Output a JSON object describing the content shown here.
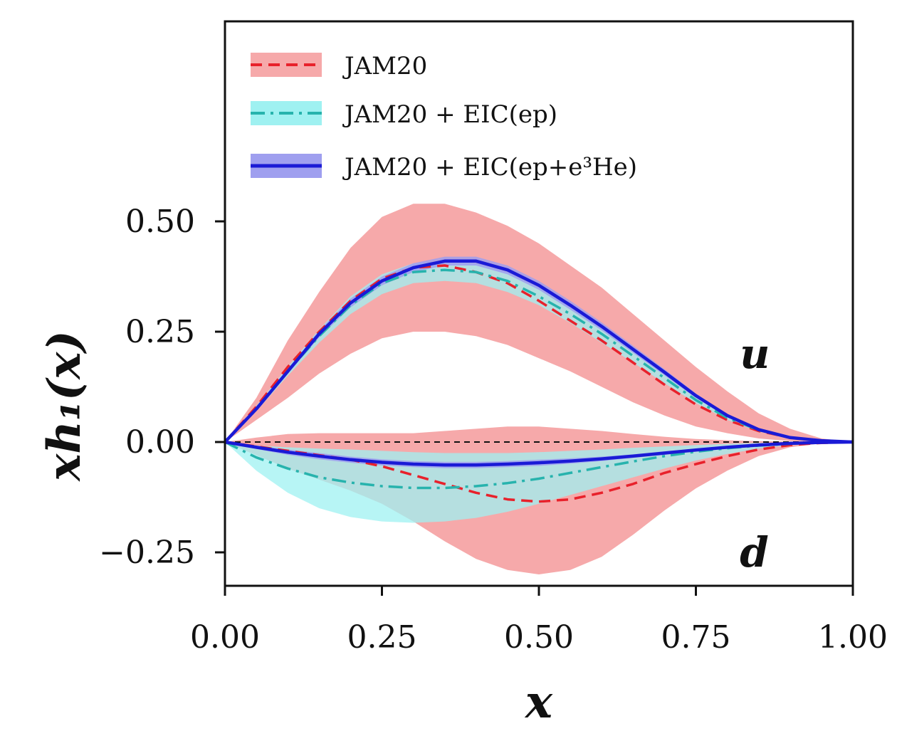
{
  "chart_data": {
    "type": "line",
    "xlabel": "x",
    "ylabel": "xh₁(x)",
    "xlim": [
      0,
      1
    ],
    "ylim": [
      -0.32,
      0.95
    ],
    "x_ticks": [
      0.0,
      0.25,
      0.5,
      0.75,
      1.0
    ],
    "x_tick_labels": [
      "0.00",
      "0.25",
      "0.50",
      "0.75",
      "1.00"
    ],
    "y_ticks": [
      -0.25,
      0.0,
      0.25,
      0.5
    ],
    "y_tick_labels": [
      "−0.25",
      "0.00",
      "0.25",
      "0.50"
    ],
    "grid": false,
    "legend_position": "upper-left",
    "colors": {
      "jam20_line": "#e8212b",
      "jam20_band": "#f6a9aa",
      "ep_line": "#27b3ad",
      "ep_band": "#9ff1f1",
      "he_line": "#1a1ad6",
      "he_band": "#9f9fef",
      "overlap_band": "#a9b6b2"
    },
    "legend": [
      {
        "label": "JAM20",
        "style": "dashed"
      },
      {
        "label": "JAM20 + EIC(ep)",
        "style": "dashdot"
      },
      {
        "label": "JAM20 + EIC(ep+e³He)",
        "style": "solid"
      }
    ],
    "annotations": [
      {
        "text": "u",
        "x": 0.82,
        "y": 0.2
      },
      {
        "text": "d",
        "x": 0.82,
        "y": -0.25
      }
    ],
    "x": [
      0.0,
      0.05,
      0.1,
      0.15,
      0.2,
      0.25,
      0.3,
      0.35,
      0.4,
      0.45,
      0.5,
      0.55,
      0.6,
      0.65,
      0.7,
      0.75,
      0.8,
      0.85,
      0.9,
      0.95,
      1.0
    ],
    "series": [
      {
        "name": "JAM20",
        "flavor": "u",
        "values": [
          0.0,
          0.08,
          0.17,
          0.25,
          0.32,
          0.37,
          0.395,
          0.4,
          0.385,
          0.36,
          0.32,
          0.275,
          0.23,
          0.18,
          0.13,
          0.085,
          0.05,
          0.025,
          0.01,
          0.003,
          0.0
        ],
        "band_lower": [
          0.0,
          0.05,
          0.1,
          0.155,
          0.2,
          0.235,
          0.25,
          0.25,
          0.24,
          0.22,
          0.19,
          0.16,
          0.125,
          0.09,
          0.06,
          0.035,
          0.02,
          0.008,
          0.002,
          0.0,
          0.0
        ],
        "band_upper": [
          0.0,
          0.1,
          0.23,
          0.34,
          0.44,
          0.51,
          0.54,
          0.54,
          0.52,
          0.49,
          0.45,
          0.4,
          0.35,
          0.29,
          0.23,
          0.17,
          0.115,
          0.065,
          0.03,
          0.008,
          0.0
        ]
      },
      {
        "name": "JAM20 + EIC(ep)",
        "flavor": "u",
        "values": [
          0.0,
          0.075,
          0.16,
          0.24,
          0.31,
          0.36,
          0.385,
          0.39,
          0.385,
          0.365,
          0.33,
          0.29,
          0.245,
          0.195,
          0.145,
          0.095,
          0.055,
          0.027,
          0.01,
          0.003,
          0.0
        ],
        "band_lower": [
          0.0,
          0.07,
          0.15,
          0.225,
          0.29,
          0.335,
          0.36,
          0.365,
          0.36,
          0.34,
          0.31,
          0.27,
          0.225,
          0.18,
          0.133,
          0.088,
          0.05,
          0.024,
          0.008,
          0.002,
          0.0
        ],
        "band_upper": [
          0.0,
          0.082,
          0.17,
          0.255,
          0.33,
          0.38,
          0.405,
          0.41,
          0.405,
          0.385,
          0.35,
          0.31,
          0.262,
          0.21,
          0.158,
          0.104,
          0.06,
          0.03,
          0.012,
          0.004,
          0.0
        ]
      },
      {
        "name": "JAM20 + EIC(ep+e³He)",
        "flavor": "u",
        "values": [
          0.0,
          0.075,
          0.16,
          0.245,
          0.315,
          0.365,
          0.395,
          0.41,
          0.41,
          0.39,
          0.355,
          0.31,
          0.262,
          0.21,
          0.158,
          0.105,
          0.06,
          0.028,
          0.01,
          0.003,
          0.0
        ],
        "band_lower": [
          0.0,
          0.072,
          0.155,
          0.237,
          0.305,
          0.355,
          0.385,
          0.4,
          0.4,
          0.38,
          0.345,
          0.3,
          0.253,
          0.202,
          0.151,
          0.1,
          0.057,
          0.026,
          0.009,
          0.002,
          0.0
        ],
        "band_upper": [
          0.0,
          0.078,
          0.165,
          0.253,
          0.325,
          0.375,
          0.405,
          0.42,
          0.42,
          0.4,
          0.365,
          0.32,
          0.271,
          0.218,
          0.165,
          0.11,
          0.063,
          0.03,
          0.011,
          0.004,
          0.0
        ]
      },
      {
        "name": "JAM20",
        "flavor": "d",
        "values": [
          0.0,
          -0.01,
          -0.02,
          -0.03,
          -0.04,
          -0.055,
          -0.075,
          -0.095,
          -0.115,
          -0.13,
          -0.135,
          -0.13,
          -0.115,
          -0.095,
          -0.07,
          -0.05,
          -0.032,
          -0.017,
          -0.007,
          -0.002,
          0.0
        ],
        "band_lower": [
          0.0,
          -0.03,
          -0.06,
          -0.085,
          -0.11,
          -0.14,
          -0.18,
          -0.225,
          -0.265,
          -0.29,
          -0.3,
          -0.29,
          -0.26,
          -0.21,
          -0.155,
          -0.105,
          -0.065,
          -0.032,
          -0.012,
          -0.003,
          0.0
        ],
        "band_upper": [
          0.0,
          0.01,
          0.018,
          0.02,
          0.02,
          0.02,
          0.02,
          0.025,
          0.03,
          0.035,
          0.035,
          0.03,
          0.025,
          0.018,
          0.012,
          0.007,
          0.004,
          0.002,
          0.001,
          0.0,
          0.0
        ]
      },
      {
        "name": "JAM20 + EIC(ep)",
        "flavor": "d",
        "values": [
          0.0,
          -0.035,
          -0.06,
          -0.08,
          -0.092,
          -0.1,
          -0.104,
          -0.104,
          -0.1,
          -0.093,
          -0.083,
          -0.07,
          -0.057,
          -0.044,
          -0.032,
          -0.022,
          -0.014,
          -0.008,
          -0.004,
          -0.001,
          0.0
        ],
        "band_lower": [
          0.0,
          -0.065,
          -0.115,
          -0.15,
          -0.17,
          -0.18,
          -0.183,
          -0.18,
          -0.172,
          -0.158,
          -0.14,
          -0.12,
          -0.1,
          -0.08,
          -0.06,
          -0.042,
          -0.027,
          -0.015,
          -0.007,
          -0.002,
          0.0
        ],
        "band_upper": [
          0.0,
          -0.008,
          -0.012,
          -0.015,
          -0.017,
          -0.02,
          -0.023,
          -0.025,
          -0.025,
          -0.025,
          -0.023,
          -0.02,
          -0.017,
          -0.013,
          -0.01,
          -0.007,
          -0.004,
          -0.002,
          -0.001,
          0.0,
          0.0
        ]
      },
      {
        "name": "JAM20 + EIC(ep+e³He)",
        "flavor": "d",
        "values": [
          0.0,
          -0.012,
          -0.023,
          -0.032,
          -0.04,
          -0.046,
          -0.05,
          -0.052,
          -0.052,
          -0.05,
          -0.047,
          -0.043,
          -0.038,
          -0.032,
          -0.025,
          -0.018,
          -0.012,
          -0.007,
          -0.003,
          -0.001,
          0.0
        ],
        "band_lower": [
          0.0,
          -0.016,
          -0.029,
          -0.039,
          -0.047,
          -0.053,
          -0.057,
          -0.059,
          -0.059,
          -0.057,
          -0.054,
          -0.049,
          -0.043,
          -0.036,
          -0.029,
          -0.021,
          -0.014,
          -0.008,
          -0.004,
          -0.001,
          0.0
        ],
        "band_upper": [
          0.0,
          -0.008,
          -0.017,
          -0.025,
          -0.033,
          -0.039,
          -0.043,
          -0.045,
          -0.045,
          -0.043,
          -0.04,
          -0.037,
          -0.033,
          -0.028,
          -0.021,
          -0.015,
          -0.01,
          -0.006,
          -0.002,
          -0.001,
          0.0
        ]
      }
    ]
  }
}
